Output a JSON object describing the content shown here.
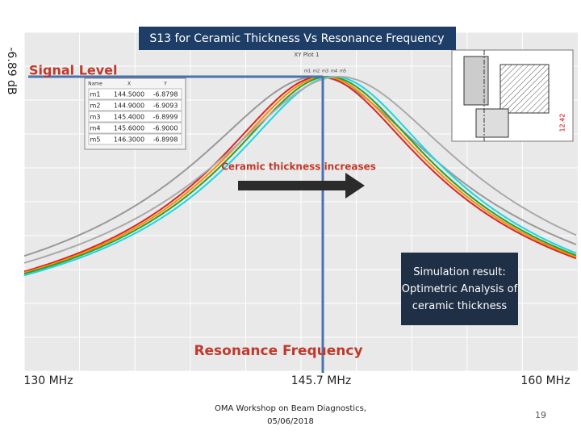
{
  "slide": {
    "title": "S13 for Ceramic Thickness Vs Resonance Frequency",
    "y_label": "-6.89 dB",
    "signal_label": "Signal Level",
    "plot_name": "XY Plot 1",
    "marker_table": {
      "header": [
        "Name",
        "X",
        "Y"
      ],
      "rows": [
        [
          "m1",
          "144.5000",
          "-6.8798"
        ],
        [
          "m2",
          "144.9000",
          "-6.9093"
        ],
        [
          "m3",
          "145.4000",
          "-6.8999"
        ],
        [
          "m4",
          "145.6000",
          "-6.9000"
        ],
        [
          "m5",
          "146.3000",
          "-6.8998"
        ]
      ]
    },
    "marker_tags": [
      "m1",
      "m2",
      "m3",
      "m4",
      "m5"
    ],
    "annotation": "Ceramic thickness increases",
    "result_box": "Simulation result: Optimetric Analysis of ceramic thickness",
    "x_title": "Resonance Frequency",
    "x_labels": [
      "130 MHz",
      "145.7 MHz",
      "160 MHz"
    ],
    "drawing_dim": "12.42",
    "footer": {
      "line1": "OMA Workshop on Beam Diagnostics,",
      "line2": "05/06/2018"
    },
    "page_number": "19"
  }
}
